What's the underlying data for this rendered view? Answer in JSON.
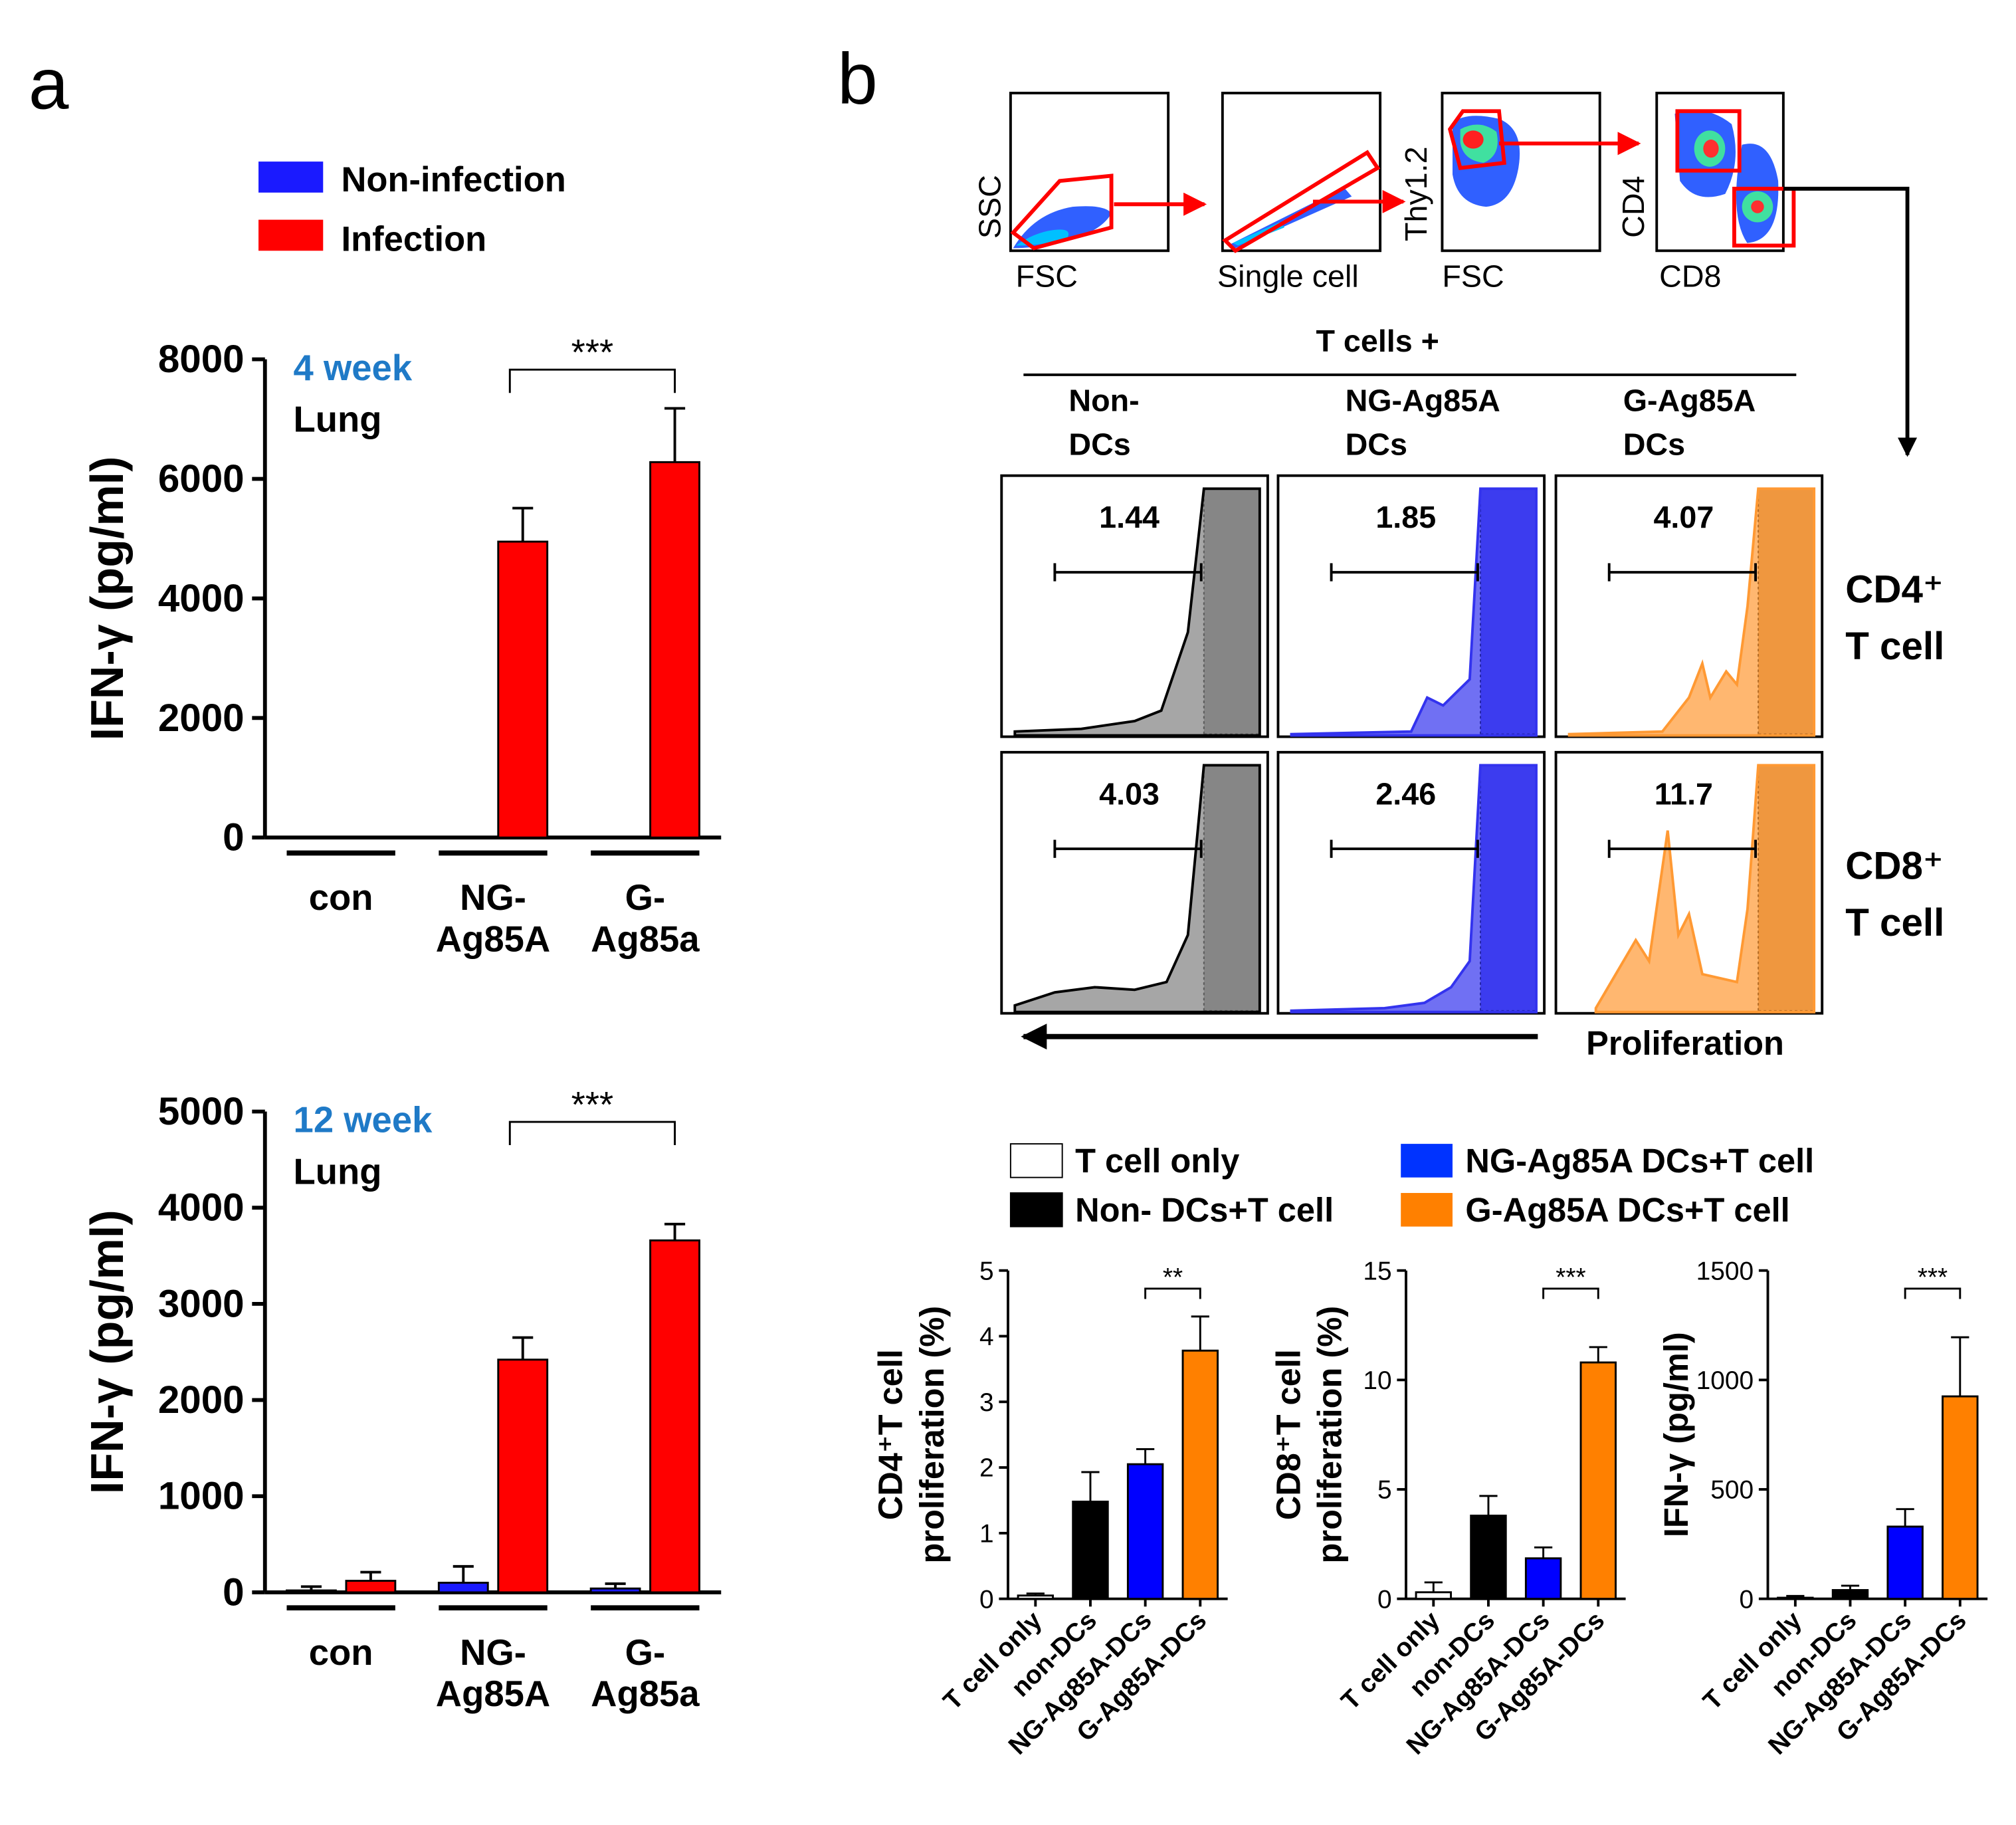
{
  "panel_labels": {
    "a": "a",
    "b": "b"
  },
  "colors": {
    "non_infection": "#1a1aff",
    "infection": "#ff0000",
    "blue": "#0033ff",
    "orange": "#ff8000",
    "gray": "#808080",
    "black": "#000000",
    "week_label": "#1f7ac7"
  },
  "legend_a": [
    {
      "label": "Non-infection",
      "color": "#1a1aff"
    },
    {
      "label": "Infection",
      "color": "#ff0000"
    }
  ],
  "legend_b": [
    {
      "label": "T cell only",
      "color": "#ffffff"
    },
    {
      "label": "Non- DCs+T cell",
      "color": "#000000"
    },
    {
      "label": "NG-Ag85A DCs+T cell",
      "color": "#0033ff"
    },
    {
      "label": "G-Ag85A DCs+T cell",
      "color": "#ff8000"
    }
  ],
  "gating": {
    "plots": [
      {
        "xlabel": "FSC",
        "ylabel": "SSC"
      },
      {
        "xlabel": "Single cell",
        "ylabel": ""
      },
      {
        "xlabel": "FSC",
        "ylabel": "Thy1.2"
      },
      {
        "xlabel": "CD8",
        "ylabel": "CD4"
      }
    ]
  },
  "histograms": {
    "header": "T cells +",
    "columns": [
      {
        "line1": "Non-",
        "line2": "DCs",
        "color": "#808080"
      },
      {
        "line1": "NG-Ag85A",
        "line2": "DCs",
        "color": "#3333ee"
      },
      {
        "line1": "G-Ag85A",
        "line2": "DCs",
        "color": "#ff9933"
      }
    ],
    "rows": [
      {
        "line1": "CD4⁺",
        "line2": "T cell",
        "values": [
          "1.44",
          "1.85",
          "4.07"
        ]
      },
      {
        "line1": "CD8⁺",
        "line2": "T cell",
        "values": [
          "4.03",
          "2.46",
          "11.7"
        ]
      }
    ],
    "xlabel": "Proliferation"
  },
  "chart_data": [
    {
      "id": "a-4week",
      "type": "bar",
      "panel": "a",
      "title": "4 week",
      "subtitle": "Lung",
      "ylabel": "IFN-γ (pg/ml)",
      "ylim": [
        0,
        8000
      ],
      "yticks": [
        0,
        2000,
        4000,
        6000,
        8000
      ],
      "groups": [
        [
          "con"
        ],
        [
          "NG-",
          "Ag85A"
        ],
        [
          "G-",
          "Ag85a"
        ]
      ],
      "series": [
        {
          "name": "Non-infection",
          "color": "#1a1aff",
          "values": [
            0,
            0,
            10
          ],
          "errors": [
            0,
            0,
            0
          ]
        },
        {
          "name": "Infection",
          "color": "#ff0000",
          "values": [
            0,
            4950,
            6280
          ],
          "errors": [
            0,
            560,
            900
          ]
        }
      ],
      "significance": [
        {
          "label": "***",
          "from": 1,
          "to": 2
        }
      ]
    },
    {
      "id": "a-12week",
      "type": "bar",
      "panel": "a",
      "title": "12 week",
      "subtitle": "Lung",
      "ylabel": "IFN-γ (pg/ml)",
      "ylim": [
        0,
        5000
      ],
      "yticks": [
        0,
        1000,
        2000,
        3000,
        4000,
        5000
      ],
      "groups": [
        [
          "con"
        ],
        [
          "NG-",
          "Ag85A"
        ],
        [
          "G-",
          "Ag85a"
        ]
      ],
      "series": [
        {
          "name": "Non-infection",
          "color": "#1a1aff",
          "values": [
            20,
            100,
            40
          ],
          "errors": [
            40,
            170,
            50
          ]
        },
        {
          "name": "Infection",
          "color": "#ff0000",
          "values": [
            120,
            2420,
            3660
          ],
          "errors": [
            90,
            230,
            170
          ]
        }
      ],
      "significance": [
        {
          "label": "***",
          "from": 1,
          "to": 2
        }
      ]
    },
    {
      "id": "b-cd4",
      "type": "bar",
      "panel": "b",
      "ylabel_line1": "CD4⁺T cell",
      "ylabel_line2": "proliferation (%)",
      "ylim": [
        0,
        5
      ],
      "yticks": [
        0,
        1,
        2,
        3,
        4,
        5
      ],
      "categories": [
        "T cell only",
        "non-DCs",
        "NG-Ag85A-DCs",
        "G-Ag85A-DCs"
      ],
      "values": [
        0.05,
        1.48,
        2.05,
        3.78
      ],
      "errors": [
        0.03,
        0.45,
        0.23,
        0.52
      ],
      "colors": [
        "#ffffff",
        "#000000",
        "#0000ff",
        "#ff8000"
      ],
      "significance": [
        {
          "label": "**",
          "from": 2,
          "to": 3
        }
      ]
    },
    {
      "id": "b-cd8",
      "type": "bar",
      "panel": "b",
      "ylabel_line1": "CD8⁺T cell",
      "ylabel_line2": "proliferation (%)",
      "ylim": [
        0,
        15
      ],
      "yticks": [
        0,
        5,
        10,
        15
      ],
      "categories": [
        "T cell only",
        "non-DCs",
        "NG-Ag85A-DCs",
        "G-Ag85A-DCs"
      ],
      "values": [
        0.3,
        3.8,
        1.85,
        10.8
      ],
      "errors": [
        0.45,
        0.9,
        0.5,
        0.7
      ],
      "colors": [
        "#ffffff",
        "#000000",
        "#0000ff",
        "#ff8000"
      ],
      "significance": [
        {
          "label": "***",
          "from": 2,
          "to": 3
        }
      ]
    },
    {
      "id": "b-ifn",
      "type": "bar",
      "panel": "b",
      "ylabel_line1": "IFN-γ (pg/ml)",
      "ylabel_line2": "",
      "ylim": [
        0,
        1500
      ],
      "yticks": [
        0,
        500,
        1000,
        1500
      ],
      "categories": [
        "T cell only",
        "non-DCs",
        "NG-Ag85A-DCs",
        "G-Ag85A-DCs"
      ],
      "values": [
        5,
        40,
        330,
        925
      ],
      "errors": [
        8,
        20,
        80,
        270
      ],
      "colors": [
        "#ffffff",
        "#000000",
        "#0000ff",
        "#ff8000"
      ],
      "significance": [
        {
          "label": "***",
          "from": 2,
          "to": 3
        }
      ]
    }
  ]
}
